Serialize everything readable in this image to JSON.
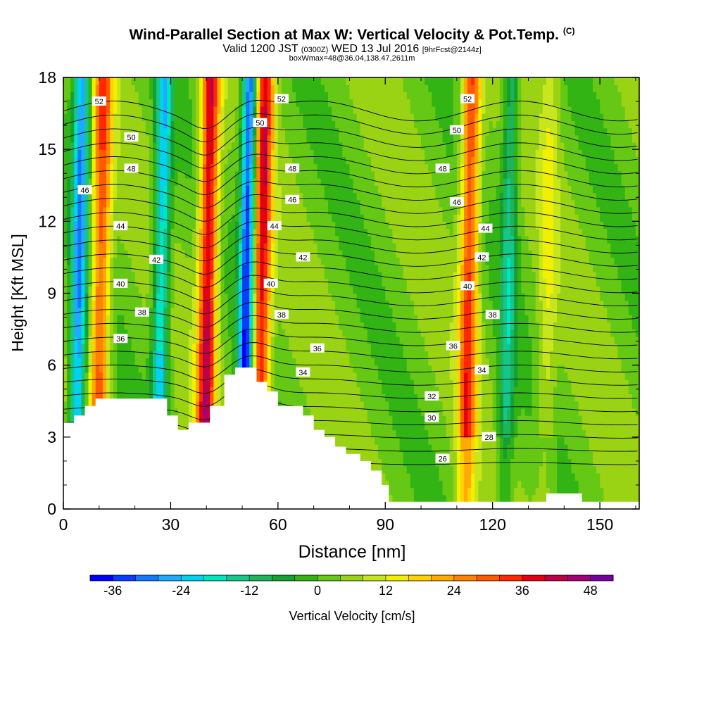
{
  "chart_data": {
    "type": "heatmap",
    "title": "Wind-Parallel Section at Max W: Vertical Velocity & Pot.Temp.",
    "title_mark": "(C)",
    "subtitle": {
      "valid": "Valid 1200 JST",
      "utc": "(0300Z)",
      "date": "WED 13 Jul 2016",
      "fcst": "[9hrFcst@2144z]"
    },
    "subtitle2": "boxWmax=48@36.04,138.47,2611m",
    "xlabel": "Distance [nm]",
    "ylabel": "Height [Kft MSL]",
    "xlim": [
      0,
      161
    ],
    "ylim": [
      0,
      18
    ],
    "x_ticks": [
      "0",
      "30",
      "60",
      "90",
      "120",
      "150"
    ],
    "y_ticks": [
      "0",
      "3",
      "6",
      "9",
      "12",
      "15",
      "18"
    ],
    "colorbar": {
      "label": "Vertical Velocity [cm/s]",
      "ticks": [
        "-36",
        "-24",
        "-12",
        "0",
        "12",
        "24",
        "36",
        "48"
      ],
      "min": -40,
      "max": 52,
      "step": 4,
      "colors": [
        "#0000ff",
        "#0a3cff",
        "#1478ff",
        "#1eaaff",
        "#00d2f0",
        "#00e6c0",
        "#14c88c",
        "#1eb45a",
        "#14a032",
        "#32b414",
        "#64c814",
        "#9ad214",
        "#c8e61e",
        "#f0f000",
        "#ffd200",
        "#ffaa00",
        "#ff8200",
        "#ff5a00",
        "#ff2800",
        "#e60014",
        "#be0046",
        "#a00078",
        "#7800a0"
      ]
    },
    "updrafts": [
      {
        "x": 10,
        "w": 28
      },
      {
        "x": 40,
        "w": 38
      },
      {
        "x": 55,
        "w": 36
      },
      {
        "x": 113,
        "w": 30
      },
      {
        "x": 135,
        "w": 8
      }
    ],
    "downdrafts": [
      {
        "x": 4,
        "w": -30
      },
      {
        "x": 27,
        "w": -26
      },
      {
        "x": 51,
        "w": -40
      },
      {
        "x": 124,
        "w": -16
      }
    ],
    "theta_levels": [
      26,
      28,
      30,
      32,
      34,
      36,
      38,
      40,
      42,
      44,
      46,
      48,
      50,
      52
    ],
    "theta_labels": [
      {
        "text": "52",
        "x": 10,
        "y": 17.0
      },
      {
        "text": "50",
        "x": 19,
        "y": 15.5
      },
      {
        "text": "48",
        "x": 19,
        "y": 14.2
      },
      {
        "text": "46",
        "x": 6,
        "y": 13.3
      },
      {
        "text": "44",
        "x": 16,
        "y": 11.8
      },
      {
        "text": "42",
        "x": 26,
        "y": 10.4
      },
      {
        "text": "40",
        "x": 16,
        "y": 9.4
      },
      {
        "text": "38",
        "x": 22,
        "y": 8.2
      },
      {
        "text": "36",
        "x": 16,
        "y": 7.1
      },
      {
        "text": "52",
        "x": 61,
        "y": 17.1
      },
      {
        "text": "50",
        "x": 55,
        "y": 16.1
      },
      {
        "text": "48",
        "x": 64,
        "y": 14.2
      },
      {
        "text": "46",
        "x": 64,
        "y": 12.9
      },
      {
        "text": "44",
        "x": 59,
        "y": 11.8
      },
      {
        "text": "42",
        "x": 67,
        "y": 10.5
      },
      {
        "text": "40",
        "x": 58,
        "y": 9.4
      },
      {
        "text": "38",
        "x": 61,
        "y": 8.1
      },
      {
        "text": "36",
        "x": 71,
        "y": 6.7
      },
      {
        "text": "34",
        "x": 67,
        "y": 5.7
      },
      {
        "text": "52",
        "x": 113,
        "y": 17.1
      },
      {
        "text": "50",
        "x": 110,
        "y": 15.8
      },
      {
        "text": "48",
        "x": 106,
        "y": 14.2
      },
      {
        "text": "46",
        "x": 110,
        "y": 12.8
      },
      {
        "text": "44",
        "x": 118,
        "y": 11.7
      },
      {
        "text": "42",
        "x": 117,
        "y": 10.5
      },
      {
        "text": "40",
        "x": 113,
        "y": 9.3
      },
      {
        "text": "38",
        "x": 120,
        "y": 8.1
      },
      {
        "text": "36",
        "x": 109,
        "y": 6.8
      },
      {
        "text": "34",
        "x": 117,
        "y": 5.8
      },
      {
        "text": "32",
        "x": 103,
        "y": 4.7
      },
      {
        "text": "30",
        "x": 103,
        "y": 3.8
      },
      {
        "text": "28",
        "x": 119,
        "y": 3.0
      },
      {
        "text": "26",
        "x": 106,
        "y": 2.1
      }
    ],
    "terrain": [
      [
        0,
        3.6
      ],
      [
        3,
        3.6
      ],
      [
        3,
        3.9
      ],
      [
        6,
        3.9
      ],
      [
        6,
        4.3
      ],
      [
        9,
        4.3
      ],
      [
        9,
        4.6
      ],
      [
        20,
        4.6
      ],
      [
        20,
        4.6
      ],
      [
        29,
        4.6
      ],
      [
        29,
        3.9
      ],
      [
        32,
        3.9
      ],
      [
        32,
        3.3
      ],
      [
        35,
        3.3
      ],
      [
        35,
        3.6
      ],
      [
        41,
        3.6
      ],
      [
        41,
        4.3
      ],
      [
        45,
        4.3
      ],
      [
        45,
        5.6
      ],
      [
        48,
        5.6
      ],
      [
        48,
        5.9
      ],
      [
        54,
        5.9
      ],
      [
        54,
        5.3
      ],
      [
        57,
        5.3
      ],
      [
        57,
        4.9
      ],
      [
        60,
        4.9
      ],
      [
        60,
        4.3
      ],
      [
        67,
        4.3
      ],
      [
        67,
        3.9
      ],
      [
        70,
        3.9
      ],
      [
        70,
        3.3
      ],
      [
        73,
        3.3
      ],
      [
        73,
        3.0
      ],
      [
        76,
        3.0
      ],
      [
        76,
        2.6
      ],
      [
        79,
        2.6
      ],
      [
        79,
        2.3
      ],
      [
        83,
        2.3
      ],
      [
        83,
        2.0
      ],
      [
        86,
        2.0
      ],
      [
        86,
        1.6
      ],
      [
        89,
        1.6
      ],
      [
        89,
        1.0
      ],
      [
        91,
        1.0
      ],
      [
        91,
        0.3
      ],
      [
        135,
        0.3
      ],
      [
        135,
        0.65
      ],
      [
        145,
        0.65
      ],
      [
        145,
        0.3
      ],
      [
        161,
        0.3
      ]
    ]
  }
}
